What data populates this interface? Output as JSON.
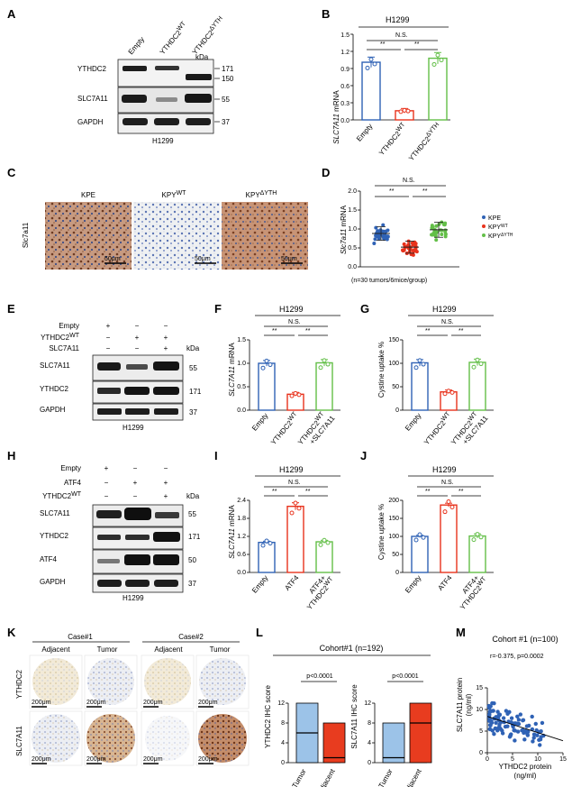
{
  "colors": {
    "blue": "#2f62b5",
    "red": "#e8321c",
    "green": "#63bf48",
    "lightblue": "#9cc3e8",
    "red_fill": "#e83c1f",
    "purple": "#aab3e6"
  },
  "panels": {
    "A": {
      "letter": "A",
      "lanes": [
        "Empty",
        "YTHDC2",
        "YTHDC2"
      ],
      "lane_sup": [
        "",
        "WT",
        "ΔYTH"
      ],
      "rows": [
        "YTHDC2",
        "SLC7A11",
        "GAPDH"
      ],
      "kda": "kDa",
      "mw": [
        "171",
        "150",
        "55",
        "37"
      ],
      "cell": "H1299"
    },
    "B": {
      "letter": "B",
      "cell": "H1299",
      "ylabel_italic": "SLC7A11",
      "ylabel_rest": " mRNA",
      "yticks": [
        "0.0",
        "0.3",
        "0.6",
        "0.9",
        "1.2",
        "1.5"
      ],
      "xlabels": [
        "Empty",
        "YTHDC2",
        "YTHDC2"
      ],
      "x_sup": [
        "",
        "WT",
        "ΔYTH"
      ],
      "sig": [
        "N.S.",
        "**",
        "**"
      ]
    },
    "C": {
      "letter": "C",
      "side": "Slc7a11",
      "titles": [
        "KPE",
        "KPY",
        "KPY"
      ],
      "title_sup": [
        "",
        "WT",
        "ΔYTH"
      ],
      "scale": "50μm"
    },
    "D": {
      "letter": "D",
      "ylabel_italic": "Slc7a11",
      "ylabel_rest": " mRNA",
      "yticks": [
        "0.0",
        "0.5",
        "1.0",
        "1.5",
        "2.0"
      ],
      "sig": [
        "N.S.",
        "**",
        "**"
      ],
      "note": "(n=30 tumors/6mice/group)",
      "legend": [
        "KPE",
        "KPY",
        "KPY"
      ],
      "legend_sup": [
        "",
        "WT",
        "ΔYTH"
      ]
    },
    "E": {
      "letter": "E",
      "cond_labels": [
        "Empty",
        "YTHDC2",
        "SLC7A11"
      ],
      "cond_sup": [
        "",
        "WT",
        ""
      ],
      "marks": [
        [
          "+",
          "−",
          "−"
        ],
        [
          "−",
          "+",
          "+"
        ],
        [
          "−",
          "−",
          "+"
        ]
      ],
      "rows": [
        "SLC7A11",
        "YTHDC2",
        "GAPDH"
      ],
      "kda": "kDa",
      "mw": [
        "55",
        "171",
        "37"
      ],
      "cell": "H1299"
    },
    "F": {
      "letter": "F",
      "cell": "H1299",
      "ylabel_italic": "SLC7A11",
      "ylabel_rest": " mRNA",
      "yticks": [
        "0.0",
        "0.5",
        "1.0",
        "1.5"
      ],
      "sig": [
        "N.S.",
        "**",
        "**"
      ],
      "xlabels": [
        "Empty",
        "YTHDC2",
        "YTHDC2"
      ],
      "x_sup": [
        "",
        "WT",
        "WT"
      ],
      "x_line2": [
        "",
        "",
        "+SLC7A11"
      ]
    },
    "G": {
      "letter": "G",
      "cell": "H1299",
      "ylabel": "Cystine uptake %",
      "yticks": [
        "0",
        "50",
        "100",
        "150"
      ],
      "sig": [
        "N.S.",
        "**",
        "**"
      ],
      "xlabels": [
        "Empty",
        "YTHDC2",
        "YTHDC2"
      ],
      "x_sup": [
        "",
        "WT",
        "WT"
      ],
      "x_line2": [
        "",
        "",
        "+SLC7A11"
      ]
    },
    "H": {
      "letter": "H",
      "cond_labels": [
        "Empty",
        "ATF4",
        "YTHDC2"
      ],
      "cond_sup": [
        "",
        "",
        "WT"
      ],
      "marks": [
        [
          "+",
          "−",
          "−"
        ],
        [
          "−",
          "+",
          "+"
        ],
        [
          "−",
          "−",
          "+"
        ]
      ],
      "rows": [
        "SLC7A11",
        "YTHDC2",
        "ATF4",
        "GAPDH"
      ],
      "kda": "kDa",
      "mw": [
        "55",
        "171",
        "50",
        "37"
      ],
      "cell": "H1299"
    },
    "I": {
      "letter": "I",
      "cell": "H1299",
      "ylabel_italic": "SLC7A11",
      "ylabel_rest": " mRNA",
      "yticks": [
        "0.0",
        "0.6",
        "1.2",
        "1.8",
        "2.4"
      ],
      "sig": [
        "N.S.",
        "**",
        "**"
      ],
      "xlabels": [
        "Empty",
        "ATF4",
        "ATF4+"
      ],
      "x_line2": [
        "",
        "",
        "YTHDC2"
      ],
      "x2_sup": [
        "",
        "",
        "WT"
      ]
    },
    "J": {
      "letter": "J",
      "cell": "H1299",
      "ylabel": "Cystine uptake %",
      "yticks": [
        "0",
        "50",
        "100",
        "150",
        "200"
      ],
      "sig": [
        "N.S.",
        "**",
        "**"
      ],
      "xlabels": [
        "Empty",
        "ATF4",
        "ATF4+"
      ],
      "x_line2": [
        "",
        "",
        "YTHDC2"
      ],
      "x2_sup": [
        "",
        "",
        "WT"
      ]
    },
    "K": {
      "letter": "K",
      "cases": [
        "Case#1",
        "Case#2"
      ],
      "cols": [
        "Adjacent",
        "Tumor",
        "Adjacent",
        "Tumor"
      ],
      "rows": [
        "YTHDC2",
        "SLC7A11"
      ],
      "scale": "200μm"
    },
    "L": {
      "letter": "L",
      "cohort": "Cohort#1 (n=192)",
      "ylabels": [
        "YTHDC2 IHC score",
        "SLC7A11 IHC score"
      ],
      "yticks": [
        "0",
        "4",
        "8",
        "12"
      ],
      "pval": "p<0.0001",
      "xlabels": [
        "Tumor",
        "Adjacent"
      ]
    },
    "M": {
      "letter": "M",
      "title": "Cohort #1 (n=100)",
      "stat": "r=-0.375, p=0.0002",
      "ylabel1": "SLC7A11 protein",
      "ylabel2": "(ng/ml)",
      "xlabel1": "YTHDC2 protein",
      "xlabel2": "(ng/ml)",
      "xticks": [
        "0",
        "5",
        "10",
        "15"
      ],
      "yticks": [
        "0",
        "5",
        "10",
        "15"
      ]
    }
  },
  "chart_data": [
    {
      "panel": "B",
      "type": "bar",
      "categories": [
        "Empty",
        "YTHDC2WT",
        "YTHDC2ΔYTH"
      ],
      "values": [
        1.01,
        0.16,
        1.08
      ],
      "errors": [
        0.09,
        0.04,
        0.1
      ],
      "ylim": [
        0,
        1.5
      ]
    },
    {
      "panel": "D",
      "type": "scatter",
      "categories": [
        "KPE",
        "KPYWT",
        "KPYΔYTH"
      ],
      "means": [
        0.88,
        0.52,
        0.98
      ],
      "sd": [
        0.18,
        0.16,
        0.2
      ],
      "n_per_group": 30,
      "ylim": [
        0,
        2.0
      ]
    },
    {
      "panel": "F",
      "type": "bar",
      "categories": [
        "Empty",
        "YTHDC2WT",
        "YTHDC2WT+SLC7A11"
      ],
      "values": [
        1.0,
        0.34,
        1.01
      ],
      "errors": [
        0.06,
        0.04,
        0.07
      ],
      "ylim": [
        0,
        1.5
      ]
    },
    {
      "panel": "G",
      "type": "bar",
      "categories": [
        "Empty",
        "YTHDC2WT",
        "YTHDC2WT+SLC7A11"
      ],
      "values": [
        101,
        39,
        102
      ],
      "errors": [
        7,
        4,
        7
      ],
      "ylim": [
        0,
        150
      ]
    },
    {
      "panel": "I",
      "type": "bar",
      "categories": [
        "Empty",
        "ATF4",
        "ATF4+YTHDC2WT"
      ],
      "values": [
        1.0,
        2.2,
        1.02
      ],
      "errors": [
        0.04,
        0.12,
        0.05
      ],
      "ylim": [
        0,
        2.4
      ]
    },
    {
      "panel": "J",
      "type": "bar",
      "categories": [
        "Empty",
        "ATF4",
        "ATF4+YTHDC2WT"
      ],
      "values": [
        100,
        187,
        101
      ],
      "errors": [
        3,
        5,
        6
      ],
      "ylim": [
        0,
        200
      ]
    },
    {
      "panel": "L-YTHDC2",
      "type": "bar",
      "categories": [
        "Tumor",
        "Adjacent"
      ],
      "low": [
        0,
        0
      ],
      "high": [
        12,
        8
      ],
      "median": [
        6,
        1
      ],
      "ylim": [
        0,
        12
      ]
    },
    {
      "panel": "L-SLC7A11",
      "type": "bar",
      "categories": [
        "Tumor",
        "Adjacent"
      ],
      "low": [
        0,
        0
      ],
      "high": [
        8,
        12
      ],
      "median": [
        1,
        8
      ],
      "ylim": [
        0,
        12
      ]
    },
    {
      "panel": "M",
      "type": "scatter",
      "n": 100,
      "regression": {
        "slope": -0.375,
        "intercept": 8.4
      },
      "xlim": [
        0,
        15
      ],
      "ylim": [
        0,
        15
      ]
    }
  ]
}
